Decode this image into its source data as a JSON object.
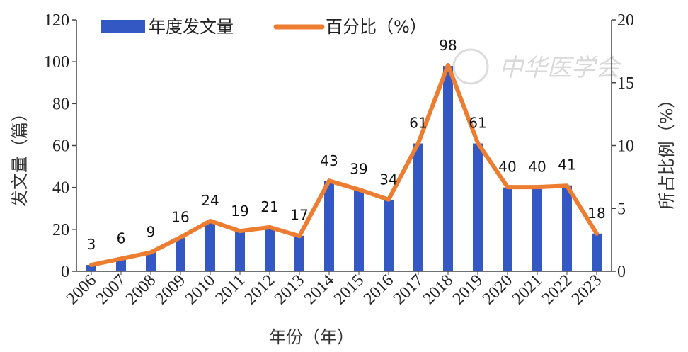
{
  "chart_data": {
    "type": "bar",
    "categories": [
      "2006",
      "2007",
      "2008",
      "2009",
      "2010",
      "2011",
      "2012",
      "2013",
      "2014",
      "2015",
      "2016",
      "2017",
      "2018",
      "2019",
      "2020",
      "2021",
      "2022",
      "2023"
    ],
    "series": [
      {
        "name": "年度发文量",
        "type": "bar",
        "axis": "left",
        "color": "#3358c4",
        "values": [
          3,
          6,
          9,
          16,
          24,
          19,
          21,
          17,
          43,
          39,
          34,
          61,
          98,
          61,
          40,
          40,
          41,
          18
        ]
      },
      {
        "name": "百分比（%）",
        "type": "line",
        "axis": "right",
        "color": "#ed7d31",
        "values": [
          0.5,
          1.0,
          1.5,
          2.7,
          4.0,
          3.2,
          3.5,
          2.8,
          7.2,
          6.5,
          5.7,
          10.2,
          16.4,
          10.2,
          6.7,
          6.7,
          6.8,
          3.0
        ]
      }
    ],
    "ylim": [
      0,
      120
    ],
    "y_ticks": [
      "0",
      "20",
      "40",
      "60",
      "80",
      "100",
      "120"
    ],
    "y2lim": [
      0,
      20
    ],
    "y2_ticks": [
      "0",
      "5",
      "10",
      "15",
      "20"
    ],
    "xlabel": "年份（年）",
    "ylabel": "发文量（篇）",
    "y2label": "所占比例（%）",
    "legend": "top",
    "grid": false,
    "watermark": "中华医学会"
  }
}
